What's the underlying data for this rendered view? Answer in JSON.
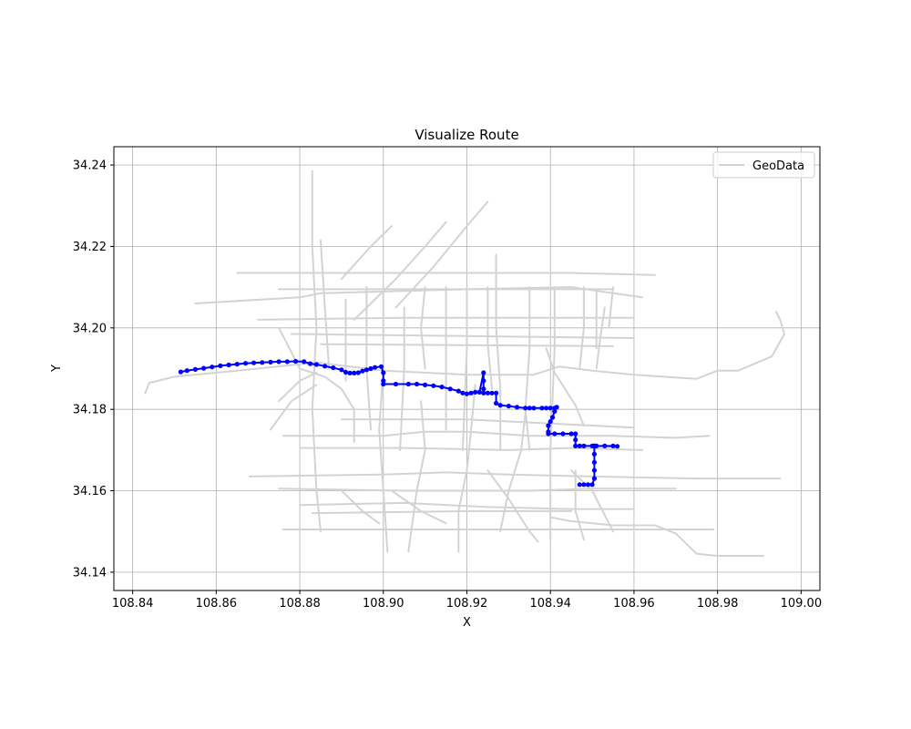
{
  "chart_data": {
    "type": "line",
    "title": "Visualize Route",
    "xlabel": "X",
    "ylabel": "Y",
    "xlim": [
      108.8355,
      109.0045
    ],
    "ylim": [
      34.1355,
      34.2445
    ],
    "xticks": [
      108.84,
      108.86,
      108.88,
      108.9,
      108.92,
      108.94,
      108.96,
      108.98,
      109.0
    ],
    "xtick_labels": [
      "108.84",
      "108.86",
      "108.88",
      "108.90",
      "108.92",
      "108.94",
      "108.96",
      "108.98",
      "109.00"
    ],
    "yticks": [
      34.14,
      34.16,
      34.18,
      34.2,
      34.22,
      34.24
    ],
    "ytick_labels": [
      "34.14",
      "34.16",
      "34.18",
      "34.20",
      "34.22",
      "34.24"
    ],
    "grid": true,
    "legend_position": "top-right",
    "legend": [
      {
        "label": "GeoData",
        "color": "#d3d3d3"
      }
    ],
    "colors": {
      "geodata": "#d3d3d3",
      "route": "#0000ff",
      "grid": "#b0b0b0"
    },
    "geodata_lines": [
      [
        [
          108.843,
          34.184
        ],
        [
          108.844,
          34.1865
        ],
        [
          108.85,
          34.188
        ],
        [
          108.87,
          34.19
        ],
        [
          108.884,
          34.1915
        ],
        [
          108.9,
          34.1895
        ],
        [
          108.92,
          34.1885
        ],
        [
          108.936,
          34.1885
        ],
        [
          108.942,
          34.1905
        ],
        [
          108.95,
          34.1895
        ],
        [
          108.96,
          34.1885
        ],
        [
          108.975,
          34.1875
        ],
        [
          108.98,
          34.1895
        ],
        [
          108.985,
          34.1895
        ],
        [
          108.993,
          34.193
        ],
        [
          108.996,
          34.1985
        ],
        [
          108.995,
          34.202
        ],
        [
          108.994,
          34.204
        ]
      ],
      [
        [
          108.855,
          34.206
        ],
        [
          108.88,
          34.2075
        ],
        [
          108.885,
          34.2085
        ],
        [
          108.92,
          34.2095
        ],
        [
          108.945,
          34.21
        ],
        [
          108.955,
          34.2085
        ],
        [
          108.962,
          34.2075
        ]
      ],
      [
        [
          108.865,
          34.2135
        ],
        [
          108.945,
          34.2135
        ],
        [
          108.965,
          34.213
        ]
      ],
      [
        [
          108.87,
          34.202
        ],
        [
          108.905,
          34.2025
        ],
        [
          108.96,
          34.2025
        ]
      ],
      [
        [
          108.875,
          34.2095
        ],
        [
          108.955,
          34.2095
        ]
      ],
      [
        [
          108.878,
          34.1985
        ],
        [
          108.96,
          34.1975
        ]
      ],
      [
        [
          108.885,
          34.196
        ],
        [
          108.955,
          34.1955
        ]
      ],
      [
        [
          108.89,
          34.1775
        ],
        [
          108.92,
          34.1775
        ],
        [
          108.94,
          34.1765
        ],
        [
          108.96,
          34.1755
        ]
      ],
      [
        [
          108.876,
          34.1735
        ],
        [
          108.9,
          34.1735
        ],
        [
          108.91,
          34.1745
        ],
        [
          108.92,
          34.1745
        ],
        [
          108.935,
          34.1735
        ],
        [
          108.955,
          34.1735
        ],
        [
          108.97,
          34.173
        ],
        [
          108.978,
          34.1735
        ]
      ],
      [
        [
          108.88,
          34.1705
        ],
        [
          108.905,
          34.1705
        ],
        [
          108.93,
          34.17
        ],
        [
          108.945,
          34.1705
        ],
        [
          108.962,
          34.17
        ]
      ],
      [
        [
          108.868,
          34.1635
        ],
        [
          108.9,
          34.164
        ],
        [
          108.915,
          34.1645
        ],
        [
          108.93,
          34.164
        ],
        [
          108.95,
          34.1635
        ],
        [
          108.975,
          34.163
        ],
        [
          108.995,
          34.163
        ]
      ],
      [
        [
          108.875,
          34.1605
        ],
        [
          108.905,
          34.16
        ],
        [
          108.935,
          34.16
        ],
        [
          108.95,
          34.1605
        ],
        [
          108.97,
          34.1605
        ]
      ],
      [
        [
          108.88,
          34.1565
        ],
        [
          108.905,
          34.157
        ],
        [
          108.925,
          34.156
        ],
        [
          108.945,
          34.1555
        ],
        [
          108.96,
          34.1555
        ]
      ],
      [
        [
          108.876,
          34.1505
        ],
        [
          108.91,
          34.1505
        ],
        [
          108.935,
          34.1505
        ],
        [
          108.96,
          34.1505
        ],
        [
          108.979,
          34.1505
        ]
      ],
      [
        [
          108.883,
          34.1545
        ],
        [
          108.92,
          34.155
        ],
        [
          108.945,
          34.155
        ]
      ],
      [
        [
          108.94,
          34.1535
        ],
        [
          108.945,
          34.1525
        ],
        [
          108.955,
          34.1515
        ],
        [
          108.965,
          34.1515
        ],
        [
          108.97,
          34.1495
        ],
        [
          108.975,
          34.1445
        ],
        [
          108.98,
          34.144
        ],
        [
          108.991,
          34.144
        ]
      ],
      [
        [
          108.883,
          34.2385
        ],
        [
          108.883,
          34.22
        ],
        [
          108.884,
          34.2
        ],
        [
          108.883,
          34.18
        ],
        [
          108.884,
          34.16
        ],
        [
          108.885,
          34.15
        ]
      ],
      [
        [
          108.885,
          34.2215
        ],
        [
          108.886,
          34.205
        ],
        [
          108.887,
          34.19
        ]
      ],
      [
        [
          108.891,
          34.207
        ],
        [
          108.891,
          34.187
        ]
      ],
      [
        [
          108.896,
          34.21
        ],
        [
          108.896,
          34.19
        ],
        [
          108.897,
          34.175
        ]
      ],
      [
        [
          108.9,
          34.21
        ],
        [
          108.9,
          34.19
        ],
        [
          108.899,
          34.175
        ],
        [
          108.9,
          34.16
        ],
        [
          108.901,
          34.145
        ]
      ],
      [
        [
          108.905,
          34.205
        ],
        [
          108.905,
          34.19
        ],
        [
          108.904,
          34.17
        ]
      ],
      [
        [
          108.91,
          34.21
        ],
        [
          108.909,
          34.2
        ],
        [
          108.91,
          34.19
        ]
      ],
      [
        [
          108.915,
          34.21
        ],
        [
          108.915,
          34.195
        ],
        [
          108.915,
          34.175
        ]
      ],
      [
        [
          108.92,
          34.21
        ],
        [
          108.92,
          34.195
        ],
        [
          108.919,
          34.17
        ]
      ],
      [
        [
          108.925,
          34.21
        ],
        [
          108.925,
          34.196
        ],
        [
          108.926,
          34.185
        ]
      ],
      [
        [
          108.927,
          34.218
        ],
        [
          108.927,
          34.2
        ],
        [
          108.928,
          34.185
        ],
        [
          108.928,
          34.17
        ]
      ],
      [
        [
          108.935,
          34.21
        ],
        [
          108.935,
          34.195
        ],
        [
          108.934,
          34.18
        ],
        [
          108.935,
          34.17
        ]
      ],
      [
        [
          108.941,
          34.21
        ],
        [
          108.941,
          34.195
        ],
        [
          108.94,
          34.17
        ],
        [
          108.94,
          34.148
        ]
      ],
      [
        [
          108.948,
          34.21
        ],
        [
          108.948,
          34.2
        ],
        [
          108.947,
          34.19
        ]
      ],
      [
        [
          108.951,
          34.209
        ],
        [
          108.951,
          34.195
        ]
      ],
      [
        [
          108.955,
          34.21
        ],
        [
          108.954,
          34.2
        ]
      ],
      [
        [
          108.922,
          34.186
        ],
        [
          108.921,
          34.175
        ],
        [
          108.92,
          34.165
        ],
        [
          108.918,
          34.155
        ],
        [
          108.918,
          34.145
        ]
      ],
      [
        [
          108.909,
          34.182
        ],
        [
          108.91,
          34.17
        ],
        [
          108.908,
          34.16
        ],
        [
          108.906,
          34.145
        ]
      ],
      [
        [
          108.934,
          34.179
        ],
        [
          108.933,
          34.17
        ],
        [
          108.93,
          34.16
        ],
        [
          108.928,
          34.15
        ]
      ],
      [
        [
          108.946,
          34.165
        ],
        [
          108.946,
          34.155
        ],
        [
          108.948,
          34.148
        ]
      ],
      [
        [
          108.875,
          34.2
        ],
        [
          108.88,
          34.19
        ],
        [
          108.886,
          34.188
        ],
        [
          108.89,
          34.185
        ],
        [
          108.893,
          34.18
        ],
        [
          108.893,
          34.172
        ]
      ],
      [
        [
          108.875,
          34.182
        ],
        [
          108.88,
          34.187
        ],
        [
          108.884,
          34.189
        ]
      ],
      [
        [
          108.873,
          34.175
        ],
        [
          108.878,
          34.182
        ],
        [
          108.884,
          34.186
        ]
      ],
      [
        [
          108.89,
          34.212
        ],
        [
          108.897,
          34.22
        ],
        [
          108.902,
          34.225
        ]
      ],
      [
        [
          108.893,
          34.202
        ],
        [
          108.903,
          34.212
        ],
        [
          108.91,
          34.22
        ],
        [
          108.915,
          34.226
        ]
      ],
      [
        [
          108.903,
          34.205
        ],
        [
          108.912,
          34.215
        ],
        [
          108.92,
          34.225
        ],
        [
          108.925,
          34.231
        ]
      ],
      [
        [
          108.939,
          34.195
        ],
        [
          108.941,
          34.189
        ],
        [
          108.946,
          34.181
        ],
        [
          108.948,
          34.176
        ]
      ],
      [
        [
          108.953,
          34.205
        ],
        [
          108.952,
          34.198
        ],
        [
          108.951,
          34.19
        ]
      ],
      [
        [
          108.89,
          34.16
        ],
        [
          108.895,
          34.155
        ],
        [
          108.899,
          34.152
        ]
      ],
      [
        [
          108.902,
          34.16
        ],
        [
          108.909,
          34.155
        ],
        [
          108.915,
          34.152
        ]
      ],
      [
        [
          108.925,
          34.165
        ],
        [
          108.93,
          34.158
        ],
        [
          108.935,
          34.15
        ],
        [
          108.937,
          34.1475
        ]
      ],
      [
        [
          108.945,
          34.165
        ],
        [
          108.95,
          34.16
        ],
        [
          108.953,
          34.154
        ],
        [
          108.955,
          34.15
        ]
      ]
    ],
    "route": {
      "x": [
        108.8515,
        108.853,
        108.855,
        108.857,
        108.859,
        108.861,
        108.863,
        108.865,
        108.867,
        108.869,
        108.871,
        108.873,
        108.875,
        108.877,
        108.879,
        108.881,
        108.8825,
        108.884,
        108.886,
        108.888,
        108.89,
        108.891,
        108.892,
        108.893,
        108.894,
        108.895,
        108.896,
        108.897,
        108.898,
        108.8995,
        108.9,
        108.9,
        108.9,
        108.903,
        108.906,
        108.908,
        108.91,
        108.912,
        108.914,
        108.916,
        108.918,
        108.919,
        108.92,
        108.921,
        108.922,
        108.923,
        108.924,
        108.924,
        108.924,
        108.924,
        108.925,
        108.926,
        108.927,
        108.927,
        108.928,
        108.93,
        108.932,
        108.934,
        108.935,
        108.936,
        108.938,
        108.939,
        108.94,
        108.941,
        108.9415,
        108.941,
        108.9405,
        108.94,
        108.9395,
        108.9395,
        108.9395,
        108.941,
        108.943,
        108.945,
        108.946,
        108.946,
        108.946,
        108.947,
        108.948,
        108.95,
        108.9505,
        108.9505,
        108.9505,
        108.9505,
        108.951,
        108.953,
        108.955,
        108.956,
        108.9505,
        108.9505,
        108.9505,
        108.9505,
        108.9505,
        108.95,
        108.949,
        108.948,
        108.947
      ],
      "y": [
        34.1892,
        34.1895,
        34.1898,
        34.1901,
        34.1904,
        34.1907,
        34.1909,
        34.1911,
        34.1913,
        34.1914,
        34.1915,
        34.1916,
        34.1917,
        34.1917,
        34.1918,
        34.1917,
        34.1912,
        34.191,
        34.1906,
        34.1902,
        34.1897,
        34.1891,
        34.1889,
        34.1889,
        34.189,
        34.1894,
        34.1897,
        34.19,
        34.1903,
        34.1905,
        34.189,
        34.187,
        34.1862,
        34.1862,
        34.1862,
        34.1862,
        34.186,
        34.1858,
        34.1855,
        34.185,
        34.1845,
        34.184,
        34.1838,
        34.184,
        34.1842,
        34.1842,
        34.189,
        34.187,
        34.185,
        34.184,
        34.184,
        34.184,
        34.184,
        34.1815,
        34.181,
        34.1808,
        34.1805,
        34.1803,
        34.1803,
        34.1803,
        34.1803,
        34.1803,
        34.1803,
        34.1803,
        34.1805,
        34.1795,
        34.178,
        34.177,
        34.176,
        34.1745,
        34.174,
        34.174,
        34.174,
        34.174,
        34.174,
        34.1725,
        34.171,
        34.171,
        34.171,
        34.171,
        34.171,
        34.171,
        34.171,
        34.171,
        34.171,
        34.171,
        34.171,
        34.1709,
        34.171,
        34.169,
        34.167,
        34.165,
        34.163,
        34.1615,
        34.1615,
        34.1615,
        34.1615
      ]
    }
  }
}
